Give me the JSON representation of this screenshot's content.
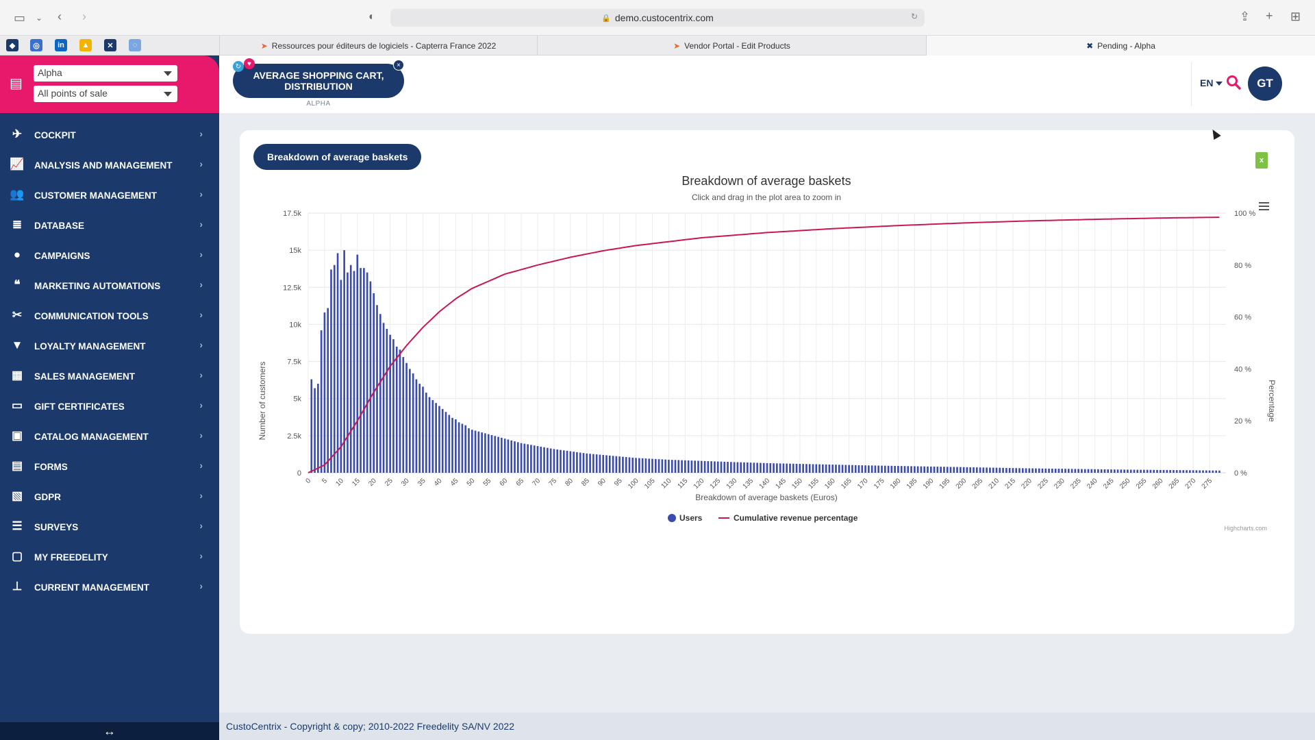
{
  "browser": {
    "url": "demo.custocentrix.com",
    "tabs": [
      {
        "title": "Ressources pour éditeurs de logiciels - Capterra France 2022"
      },
      {
        "title": "Vendor Portal - Edit Products"
      },
      {
        "title": "Pending - Alpha"
      }
    ]
  },
  "sidebar": {
    "store_select": "Alpha",
    "pos_select": "All points of sale",
    "items": [
      {
        "label": "COCKPIT",
        "icon": "rocket-icon"
      },
      {
        "label": "ANALYSIS AND MANAGEMENT",
        "icon": "line-chart-icon"
      },
      {
        "label": "CUSTOMER MANAGEMENT",
        "icon": "users-icon"
      },
      {
        "label": "DATABASE",
        "icon": "database-icon"
      },
      {
        "label": "CAMPAIGNS",
        "icon": "chat-bubble-icon"
      },
      {
        "label": "MARKETING AUTOMATIONS",
        "icon": "comments-icon"
      },
      {
        "label": "COMMUNICATION TOOLS",
        "icon": "tools-icon"
      },
      {
        "label": "LOYALTY MANAGEMENT",
        "icon": "funnel-icon"
      },
      {
        "label": "SALES MANAGEMENT",
        "icon": "cash-register-icon"
      },
      {
        "label": "GIFT CERTIFICATES",
        "icon": "card-icon"
      },
      {
        "label": "CATALOG MANAGEMENT",
        "icon": "box-icon"
      },
      {
        "label": "FORMS",
        "icon": "form-icon"
      },
      {
        "label": "GDPR",
        "icon": "file-lock-icon"
      },
      {
        "label": "SURVEYS",
        "icon": "list-icon"
      },
      {
        "label": "MY FREEDELITY",
        "icon": "devices-icon"
      },
      {
        "label": "CURRENT MANAGEMENT",
        "icon": "sitemap-icon"
      }
    ]
  },
  "header": {
    "module_title": "AVERAGE SHOPPING CART, DISTRIBUTION",
    "module_sub": "ALPHA",
    "lang": "EN",
    "avatar_initials": "GT"
  },
  "card": {
    "title_pill": "Breakdown of average baskets"
  },
  "chart_data": {
    "type": "bar",
    "title": "Breakdown of average baskets",
    "subtitle": "Click and drag in the plot area to zoom in",
    "xlabel": "Breakdown of average baskets (Euros)",
    "ylabel": "Number of customers",
    "y2label": "Percentage",
    "xlim": [
      0,
      280
    ],
    "ylim": [
      0,
      17500
    ],
    "y2lim": [
      0,
      100
    ],
    "x_ticks": [
      "0",
      "5",
      "10",
      "15",
      "20",
      "25",
      "30",
      "35",
      "40",
      "45",
      "50",
      "55",
      "60",
      "65",
      "70",
      "75",
      "80",
      "85",
      "90",
      "95",
      "100",
      "105",
      "110",
      "115",
      "120",
      "125",
      "130",
      "135",
      "140",
      "145",
      "150",
      "155",
      "160",
      "165",
      "170",
      "175",
      "180",
      "185",
      "190",
      "195",
      "200",
      "205",
      "210",
      "215",
      "220",
      "225",
      "230",
      "235",
      "240",
      "245",
      "250",
      "255",
      "260",
      "265",
      "270",
      "275"
    ],
    "y_ticks": [
      "0",
      "2.5k",
      "5k",
      "7.5k",
      "10k",
      "12.5k",
      "15k",
      "17.5k"
    ],
    "y2_ticks": [
      "0 %",
      "20 %",
      "40 %",
      "60 %",
      "80 %",
      "100 %"
    ],
    "grid": true,
    "legend_position": "bottom",
    "series": [
      {
        "name": "Users",
        "kind": "bar",
        "color": "#3a4bb0",
        "x": [
          1,
          2,
          3,
          4,
          5,
          6,
          7,
          8,
          9,
          10,
          11,
          12,
          13,
          14,
          15,
          16,
          17,
          18,
          19,
          20,
          21,
          22,
          23,
          24,
          25,
          26,
          27,
          28,
          29,
          30,
          31,
          32,
          33,
          34,
          35,
          36,
          37,
          38,
          39,
          40,
          41,
          42,
          43,
          44,
          45,
          46,
          47,
          48,
          49,
          50,
          55,
          60,
          65,
          70,
          75,
          80,
          85,
          90,
          95,
          100,
          110,
          120,
          130,
          140,
          150,
          160,
          170,
          180,
          190,
          200,
          210,
          220,
          230,
          240,
          250,
          260,
          270,
          278
        ],
        "values": [
          6300,
          5700,
          6000,
          9600,
          10800,
          11100,
          13700,
          14000,
          14800,
          13000,
          15000,
          13500,
          14000,
          13600,
          14700,
          13800,
          13800,
          13500,
          12900,
          12100,
          11300,
          10700,
          10100,
          9700,
          9300,
          9000,
          8500,
          8300,
          7800,
          7400,
          7000,
          6700,
          6300,
          6000,
          5800,
          5400,
          5100,
          4900,
          4700,
          4500,
          4300,
          4100,
          3900,
          3700,
          3600,
          3400,
          3300,
          3200,
          3000,
          2900,
          2600,
          2300,
          2000,
          1800,
          1600,
          1450,
          1300,
          1200,
          1100,
          1000,
          880,
          800,
          720,
          650,
          600,
          550,
          500,
          460,
          420,
          380,
          340,
          300,
          270,
          240,
          210,
          190,
          170,
          150
        ]
      },
      {
        "name": "Cumulative revenue percentage",
        "kind": "line",
        "color": "#c8194e",
        "x": [
          0,
          5,
          10,
          15,
          20,
          25,
          30,
          35,
          40,
          45,
          50,
          60,
          70,
          80,
          90,
          100,
          120,
          140,
          160,
          180,
          200,
          220,
          240,
          260,
          278
        ],
        "values": [
          0,
          3,
          10,
          20,
          31,
          41,
          49,
          56,
          62,
          67,
          71,
          76.5,
          80,
          83,
          85.5,
          87.5,
          90.5,
          92.5,
          94,
          95.2,
          96.2,
          97,
          97.6,
          98.1,
          98.4
        ]
      }
    ],
    "credits": "Highcharts.com"
  },
  "footer": {
    "text": "CustoCentrix - Copyright & copy; 2010-2022 Freedelity SA/NV 2022"
  }
}
